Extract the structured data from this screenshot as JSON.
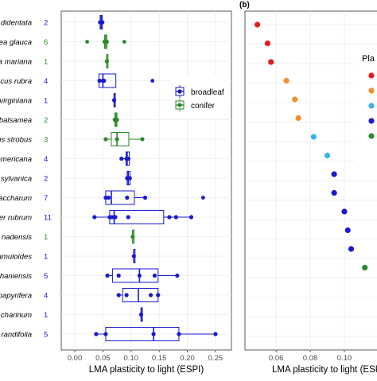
{
  "panel_b_label": "(b)",
  "colors": {
    "broadleaf": "#1a1acd",
    "conifer": "#2a8a2a"
  },
  "chart_data": [
    {
      "type": "boxplot",
      "panel": "a",
      "xlabel": "LMA plasticity to light (ESPI)",
      "xlim": [
        0,
        0.26
      ],
      "xticks": [
        "0.00",
        "0.05",
        "0.10",
        "0.15",
        "0.20",
        "0.25"
      ],
      "xtick_values": [
        0,
        0.05,
        0.1,
        0.15,
        0.2,
        0.25
      ],
      "grid": true,
      "legend": {
        "position": "right",
        "entries": [
          "broadleaf",
          "conifer"
        ]
      },
      "species": [
        {
          "label": "didentata",
          "n": "2",
          "group": "broadleaf",
          "q1": 0.045,
          "median": 0.047,
          "q3": 0.049,
          "wl": 0.043,
          "wh": 0.051,
          "points": [
            0.045,
            0.049
          ],
          "outliers": []
        },
        {
          "label": "ea glauca",
          "n": "6",
          "group": "conifer",
          "q1": 0.053,
          "median": 0.055,
          "q3": 0.057,
          "wl": 0.051,
          "wh": 0.058,
          "points": [
            0.053,
            0.055,
            0.057
          ],
          "outliers": [
            0.022,
            0.088
          ]
        },
        {
          "label": "a mariana",
          "n": "1",
          "group": "conifer",
          "q1": 0.057,
          "median": 0.057,
          "q3": 0.057,
          "wl": 0.057,
          "wh": 0.057,
          "points": [
            0.057
          ],
          "outliers": []
        },
        {
          "label": "cus rubra",
          "n": "4",
          "group": "broadleaf",
          "q1": 0.043,
          "median": 0.05,
          "q3": 0.073,
          "wl": 0.043,
          "wh": 0.073,
          "points": [
            0.044,
            0.05,
            0.052
          ],
          "outliers": [
            0.138
          ]
        },
        {
          "label": "virginiana",
          "n": "1",
          "group": "broadleaf",
          "q1": 0.07,
          "median": 0.07,
          "q3": 0.07,
          "wl": 0.07,
          "wh": 0.07,
          "points": [
            0.07
          ],
          "outliers": []
        },
        {
          "label": "balsamea",
          "n": "2",
          "group": "conifer",
          "q1": 0.071,
          "median": 0.073,
          "q3": 0.075,
          "wl": 0.069,
          "wh": 0.077,
          "points": [
            0.071,
            0.075
          ],
          "outliers": []
        },
        {
          "label": "us strobus",
          "n": "3",
          "group": "conifer",
          "q1": 0.065,
          "median": 0.075,
          "q3": 0.096,
          "wl": 0.055,
          "wh": 0.12,
          "points": [
            0.055,
            0.075,
            0.12
          ],
          "outliers": []
        },
        {
          "label": "americana",
          "n": "4",
          "group": "broadleaf",
          "q1": 0.091,
          "median": 0.093,
          "q3": 0.097,
          "wl": 0.083,
          "wh": 0.099,
          "points": [
            0.083,
            0.092,
            0.095
          ],
          "outliers": []
        },
        {
          "label": "sylvanica",
          "n": "2",
          "group": "broadleaf",
          "q1": 0.093,
          "median": 0.095,
          "q3": 0.098,
          "wl": 0.091,
          "wh": 0.1,
          "points": [
            0.093,
            0.098
          ],
          "outliers": []
        },
        {
          "label": "accharum",
          "n": "7",
          "group": "broadleaf",
          "q1": 0.055,
          "median": 0.065,
          "q3": 0.106,
          "wl": 0.055,
          "wh": 0.125,
          "points": [
            0.055,
            0.06,
            0.093,
            0.125
          ],
          "outliers": [
            0.228
          ]
        },
        {
          "label": "er rubrum",
          "n": "11",
          "group": "broadleaf",
          "q1": 0.062,
          "median": 0.07,
          "q3": 0.158,
          "wl": 0.035,
          "wh": 0.207,
          "points": [
            0.035,
            0.062,
            0.066,
            0.07,
            0.072,
            0.095,
            0.168,
            0.18,
            0.207
          ],
          "outliers": []
        },
        {
          "label": "nadensis",
          "n": "1",
          "group": "conifer",
          "q1": 0.103,
          "median": 0.103,
          "q3": 0.103,
          "wl": 0.103,
          "wh": 0.103,
          "points": [
            0.103
          ],
          "outliers": []
        },
        {
          "label": "amuloides",
          "n": "1",
          "group": "broadleaf",
          "q1": 0.105,
          "median": 0.105,
          "q3": 0.105,
          "wl": 0.105,
          "wh": 0.105,
          "points": [
            0.105
          ],
          "outliers": []
        },
        {
          "label": "haniensis",
          "n": "5",
          "group": "broadleaf",
          "q1": 0.067,
          "median": 0.115,
          "q3": 0.148,
          "wl": 0.058,
          "wh": 0.182,
          "points": [
            0.058,
            0.078,
            0.115,
            0.142,
            0.182
          ],
          "outliers": []
        },
        {
          "label": "papyrifera",
          "n": "4",
          "group": "broadleaf",
          "q1": 0.085,
          "median": 0.113,
          "q3": 0.148,
          "wl": 0.078,
          "wh": 0.148,
          "points": [
            0.078,
            0.092,
            0.135,
            0.148
          ],
          "outliers": []
        },
        {
          "label": "charinum",
          "n": "1",
          "group": "broadleaf",
          "q1": 0.118,
          "median": 0.118,
          "q3": 0.118,
          "wl": 0.118,
          "wh": 0.118,
          "points": [
            0.118
          ],
          "outliers": []
        },
        {
          "label": "randifolia",
          "n": "5",
          "group": "broadleaf",
          "q1": 0.055,
          "median": 0.14,
          "q3": 0.185,
          "wl": 0.038,
          "wh": 0.25,
          "points": [
            0.038,
            0.055,
            0.14,
            0.185,
            0.25
          ],
          "outliers": []
        }
      ]
    },
    {
      "type": "scatter",
      "panel": "b",
      "xlabel": "LMA plasticity to light (ESPI)",
      "xlim": [
        0.045,
        0.107
      ],
      "xticks": [
        "0.06",
        "0.08",
        "0.10"
      ],
      "xtick_values": [
        0.06,
        0.08,
        0.1
      ],
      "grid": true,
      "legend": {
        "position": "right",
        "title": "Pla",
        "colors": [
          "#e41a1c",
          "#f28e2b",
          "#3ab3e6",
          "#1a1acd",
          "#2a8a2a"
        ]
      },
      "points": [
        {
          "x": 0.049,
          "color": "#e41a1c"
        },
        {
          "x": 0.055,
          "color": "#e41a1c"
        },
        {
          "x": 0.057,
          "color": "#e41a1c"
        },
        {
          "x": 0.066,
          "color": "#f28e2b"
        },
        {
          "x": 0.071,
          "color": "#f28e2b"
        },
        {
          "x": 0.073,
          "color": "#f28e2b"
        },
        {
          "x": 0.082,
          "color": "#3ab3e6"
        },
        {
          "x": 0.09,
          "color": "#3ab3e6"
        },
        {
          "x": 0.094,
          "color": "#1a1acd"
        },
        {
          "x": 0.094,
          "color": "#1a1acd"
        },
        {
          "x": 0.1,
          "color": "#1a1acd"
        },
        {
          "x": 0.102,
          "color": "#1a1acd"
        },
        {
          "x": 0.104,
          "color": "#1a1acd"
        },
        {
          "x": 0.112,
          "color": "#2a8a2a"
        }
      ]
    }
  ]
}
